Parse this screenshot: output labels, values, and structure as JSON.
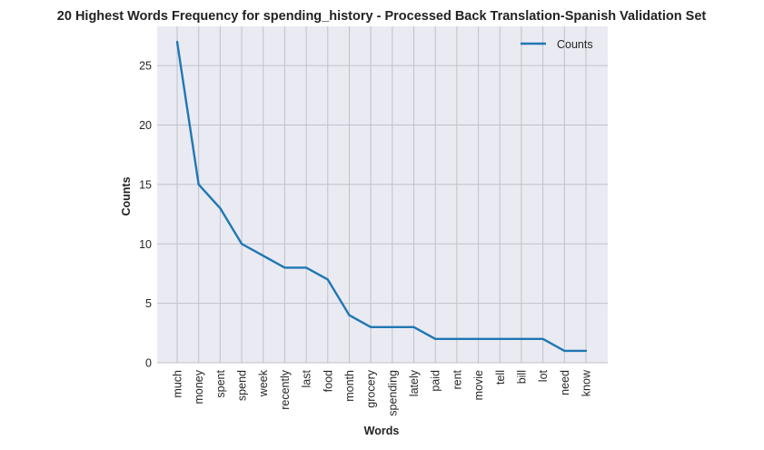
{
  "chart_data": {
    "type": "line",
    "title": "20 Highest Words Frequency for spending_history - Processed Back Translation-Spanish Validation Set",
    "xlabel": "Words",
    "ylabel": "Counts",
    "categories": [
      "much",
      "money",
      "spent",
      "spend",
      "week",
      "recently",
      "last",
      "food",
      "month",
      "grocery",
      "spending",
      "lately",
      "paid",
      "rent",
      "movie",
      "tell",
      "bill",
      "lot",
      "need",
      "know"
    ],
    "series": [
      {
        "name": "Counts",
        "values": [
          27,
          15,
          13,
          10,
          9,
          8,
          8,
          7,
          4,
          3,
          3,
          3,
          2,
          2,
          2,
          2,
          2,
          2,
          1,
          1
        ],
        "color": "#1f77b4"
      }
    ],
    "ylim": [
      0,
      28.3
    ],
    "yticks": [
      0,
      5,
      10,
      15,
      20,
      25
    ],
    "grid": true,
    "legend_position": "top-right",
    "colors": {
      "plot_background": "#eaeaf2",
      "grid": "#c0c0c8",
      "line": "#1f77b4"
    }
  }
}
